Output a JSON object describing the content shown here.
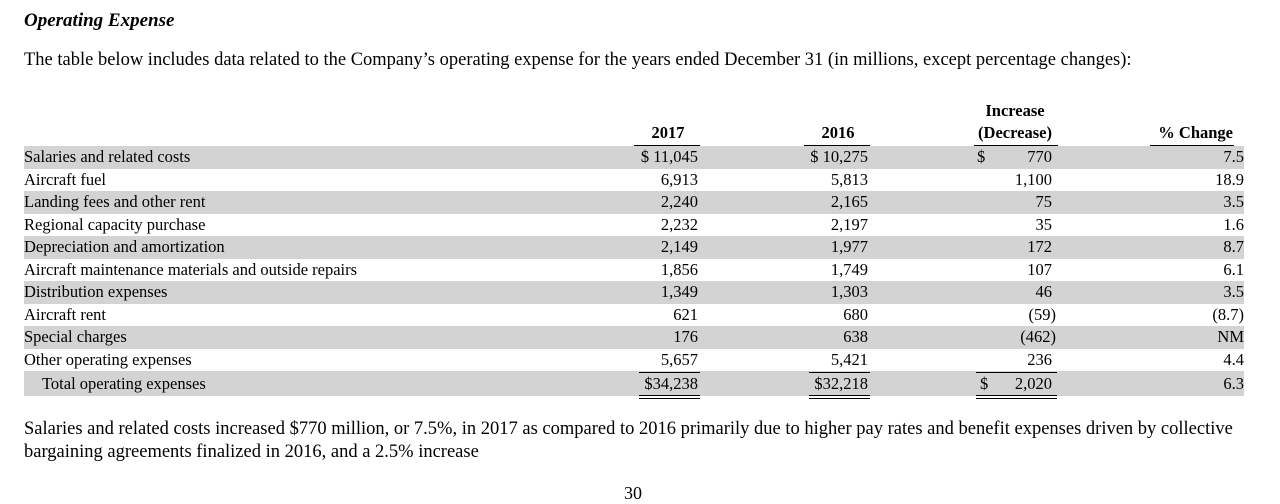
{
  "section_heading": "Operating Expense",
  "intro_text": "The table below includes data related to the Company’s operating expense for the years ended December 31 (in millions, except percentage changes):",
  "table": {
    "headers": {
      "y2017": "2017",
      "y2016": "2016",
      "increase_line1": "Increase",
      "increase_line2": "(Decrease)",
      "pct_change": "% Change"
    },
    "rows": [
      {
        "label": "Salaries and related costs",
        "v2017": "$ 11,045",
        "v2016": "$ 10,275",
        "inc_dollar": "$",
        "inc": "770",
        "pct": "7.5"
      },
      {
        "label": "Aircraft fuel",
        "v2017": "6,913",
        "v2016": "5,813",
        "inc_dollar": "",
        "inc": "1,100",
        "pct": "18.9"
      },
      {
        "label": "Landing fees and other rent",
        "v2017": "2,240",
        "v2016": "2,165",
        "inc_dollar": "",
        "inc": "75",
        "pct": "3.5"
      },
      {
        "label": "Regional capacity purchase",
        "v2017": "2,232",
        "v2016": "2,197",
        "inc_dollar": "",
        "inc": "35",
        "pct": "1.6"
      },
      {
        "label": "Depreciation and amortization",
        "v2017": "2,149",
        "v2016": "1,977",
        "inc_dollar": "",
        "inc": "172",
        "pct": "8.7"
      },
      {
        "label": "Aircraft maintenance materials and outside repairs",
        "v2017": "1,856",
        "v2016": "1,749",
        "inc_dollar": "",
        "inc": "107",
        "pct": "6.1"
      },
      {
        "label": "Distribution expenses",
        "v2017": "1,349",
        "v2016": "1,303",
        "inc_dollar": "",
        "inc": "46",
        "pct": "3.5"
      },
      {
        "label": "Aircraft rent",
        "v2017": "621",
        "v2016": "680",
        "inc_dollar": "",
        "inc": "(59)",
        "pct": "(8.7)"
      },
      {
        "label": "Special charges",
        "v2017": "176",
        "v2016": "638",
        "inc_dollar": "",
        "inc": "(462)",
        "pct": "NM"
      },
      {
        "label": "Other operating expenses",
        "v2017": "5,657",
        "v2016": "5,421",
        "inc_dollar": "",
        "inc": "236",
        "pct": "4.4"
      }
    ],
    "total": {
      "label": "Total operating expenses",
      "v2017": "$34,238",
      "v2016": "$32,218",
      "inc_dollar": "$",
      "inc": "2,020",
      "pct": "6.3"
    }
  },
  "paragraph": "Salaries and related costs increased $770 million, or 7.5%, in 2017 as compared to 2016 primarily due to higher pay rates and benefit expenses driven by collective bargaining agreements finalized in 2016, and a 2.5% increase",
  "page_number": "30",
  "colors": {
    "row_shade": "#d3d3d3",
    "text": "#000000"
  }
}
